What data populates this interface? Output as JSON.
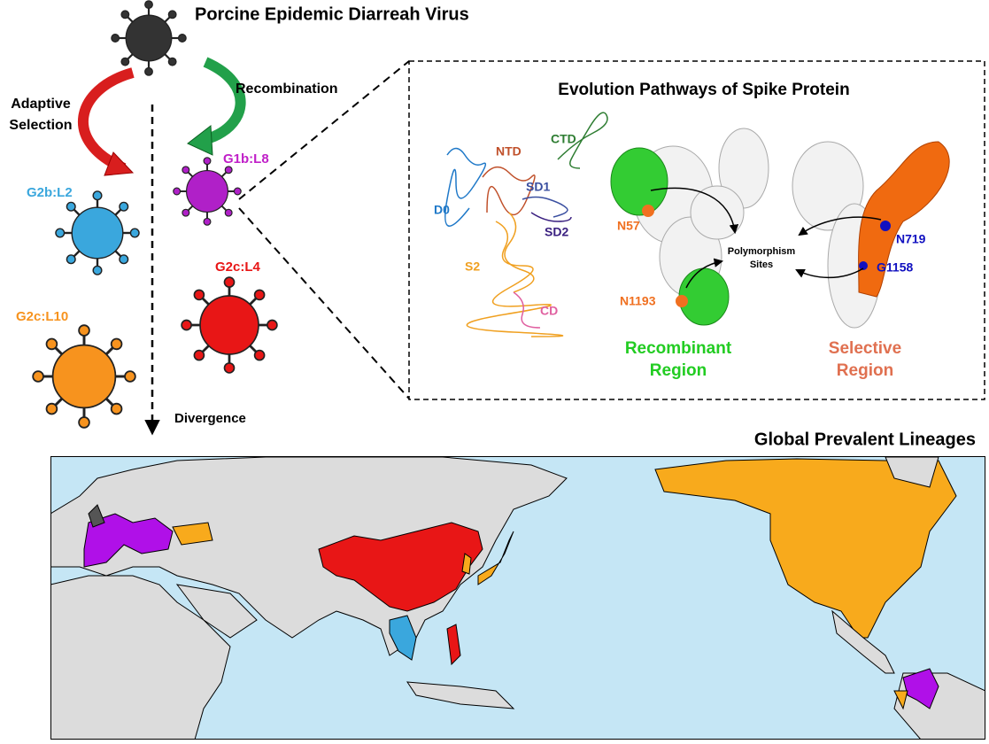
{
  "header": {
    "title": "Porcine Epidemic Diarreah Virus"
  },
  "pathways": {
    "adaptive_selection": [
      "Adaptive",
      "Selection"
    ],
    "recombination": "Recombination",
    "divergence": "Divergence"
  },
  "lineages": [
    "G1b:L8",
    "G2b:L2",
    "G2c:L4",
    "G2c:L10"
  ],
  "spike_panel": {
    "title": "Evolution Pathways of Spike Protein",
    "domains": [
      "CTD",
      "NTD",
      "SD1",
      "D0",
      "SD2",
      "S2",
      "CD"
    ],
    "sites": [
      "N57",
      "N1193",
      "N719",
      "G1158"
    ],
    "polymorphism_label": [
      "Polymorphism",
      "Sites"
    ],
    "recombinant_region": [
      "Recombinant",
      "Region"
    ],
    "selective_region": [
      "Selective",
      "Region"
    ]
  },
  "map": {
    "title": "Global Prevalent Lineages"
  }
}
